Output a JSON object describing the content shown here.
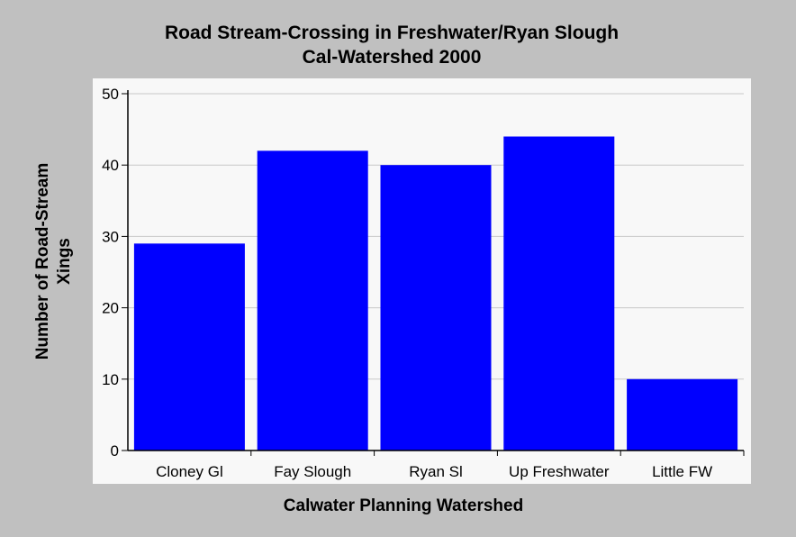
{
  "chart_data": {
    "type": "bar",
    "title": "Road Stream-Crossing in Freshwater/Ryan Slough",
    "subtitle": "Cal-Watershed 2000",
    "xlabel": "Calwater Planning Watershed",
    "ylabel": [
      "Number of Road-Stream",
      "Xings"
    ],
    "categories": [
      "Cloney Gl",
      "Fay Slough",
      "Ryan Sl",
      "Up Freshwater",
      "Little FW"
    ],
    "values": [
      29,
      42,
      40,
      44,
      10
    ],
    "ylim": [
      0,
      50
    ],
    "yticks": [
      0,
      10,
      20,
      30,
      40,
      50
    ],
    "grid": true,
    "legend": "none",
    "colors": {
      "bar": "#0000ff",
      "background": "#c0c0c0",
      "plot_area": "#f8f8f8",
      "grid": "#c8c8c8"
    }
  }
}
